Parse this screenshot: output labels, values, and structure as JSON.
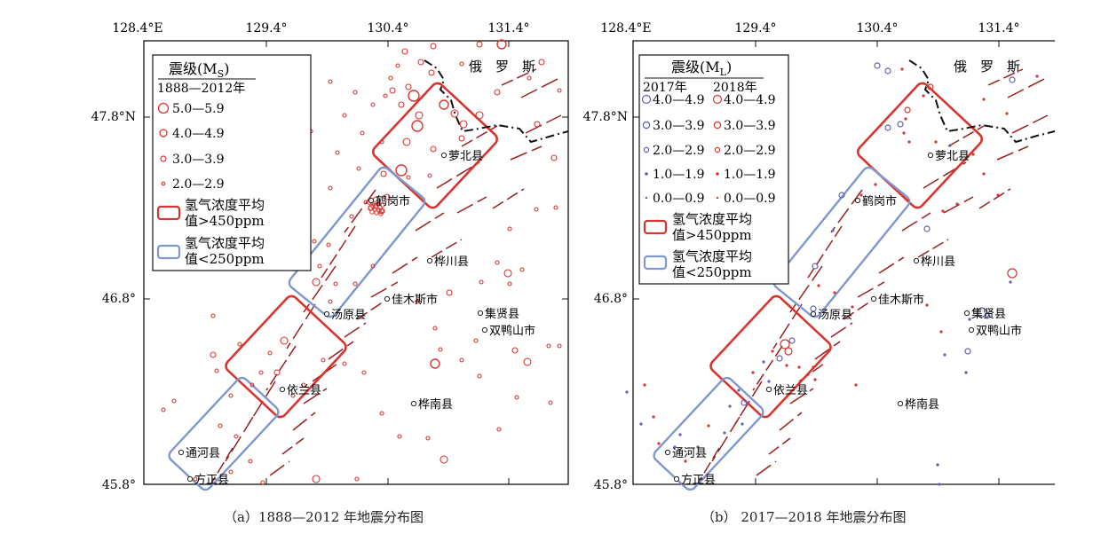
{
  "panels": [
    {
      "id": "a",
      "caption": "（a）1888—2012 年地震分布图",
      "x_ticks": [
        "128.4°E",
        "129.4°",
        "130.4°",
        "131.4°"
      ],
      "y_ticks": [
        "47.8°N",
        "46.8°",
        "45.8°"
      ],
      "country": "俄　罗　斯",
      "cities": [
        "萝北县",
        "鹤岗市",
        "桦川县",
        "佳木斯市",
        "汤原县",
        "集贤县",
        "双鸭山市",
        "依兰县",
        "桦南县",
        "通河县",
        "方正县"
      ],
      "legend": {
        "title": "震级(M",
        "title_sub": "S",
        "title_end": ")",
        "period": "1888—2012年",
        "entries": [
          "5.0—5.9",
          "4.0—4.9",
          "3.0—3.9",
          "2.0—2.9"
        ],
        "box_high": [
          "氢气浓度平均",
          "值>450ppm"
        ],
        "box_low": [
          "氢气浓度平均",
          "值<250ppm"
        ]
      }
    },
    {
      "id": "b",
      "caption": "（b） 2017—2018 年地震分布图",
      "x_ticks": [
        "128.4°E",
        "129.4°",
        "130.4°",
        "131.4°"
      ],
      "y_ticks": [
        "47.8°N",
        "46.8°",
        "45.8°"
      ],
      "country": "俄　罗　斯",
      "cities": [
        "萝北县",
        "鹤岗市",
        "桦川县",
        "佳木斯市",
        "汤原县",
        "集贤县",
        "双鸭山市",
        "依兰县",
        "桦南县",
        "通河县",
        "方正县"
      ],
      "legend": {
        "title": "震级(M",
        "title_sub": "L",
        "title_end": ")",
        "col_2017": "2017年",
        "col_2018": "2018年",
        "entries": [
          "4.0—4.9",
          "3.0—3.9",
          "2.0—2.9",
          "1.0—1.9",
          "0.0—0.9"
        ],
        "box_high": [
          "氢气浓度平均",
          "值>450ppm"
        ],
        "box_low": [
          "氢气浓度平均",
          "值<250ppm"
        ]
      }
    }
  ],
  "colors": {
    "red": "#d9352f",
    "blue": "#7f97cf",
    "fault": "#9a2020",
    "purple": "#6060b0",
    "border": "#111111"
  }
}
